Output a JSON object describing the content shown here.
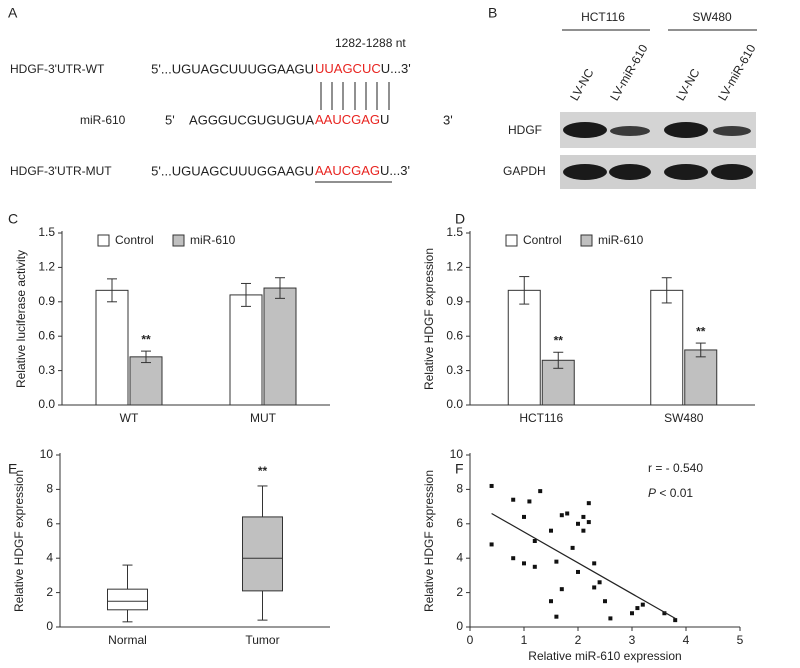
{
  "panel_a": {
    "label": "A",
    "position": "1282-1288 nt",
    "wt": {
      "name": "HDGF-3'UTR-WT",
      "prefix": "5'...UGUAGCUUUGGAAGU",
      "site": "UUAGCUC",
      "suffix": "U...3'"
    },
    "mir": {
      "name": "miR-610",
      "five": "5'",
      "prefix": "AGGGUCGUGUGUA",
      "site": "AAUCGAG",
      "suffix": "U",
      "three": "3'"
    },
    "mut": {
      "name": "HDGF-3'UTR-MUT",
      "prefix": "5'...UGUAGCUUUGGAAGU",
      "site": "AAUCGAG",
      "suffix": "U...3'"
    }
  },
  "panel_b": {
    "label": "B",
    "groups": [
      "HCT116",
      "SW480"
    ],
    "lanes": [
      "LV-NC",
      "LV-miR-610",
      "LV-NC",
      "LV-miR-610"
    ],
    "proteins": [
      "HDGF",
      "GAPDH"
    ]
  },
  "chart_data": [
    {
      "type": "bar",
      "panel": "C",
      "ylabel": "Relative luciferase activity",
      "categories": [
        "WT",
        "MUT"
      ],
      "series": [
        {
          "name": "Control",
          "color": "#ffffff",
          "values": [
            1.0,
            0.96
          ],
          "errors": [
            0.1,
            0.1
          ]
        },
        {
          "name": "miR-610",
          "color": "#c0c0c0",
          "values": [
            0.42,
            1.02
          ],
          "errors": [
            0.05,
            0.09
          ]
        }
      ],
      "annotations": [
        {
          "text": "**",
          "category": "WT",
          "series": "miR-610"
        }
      ],
      "ylim": [
        0,
        1.5
      ],
      "yticks": [
        {
          "value": 0,
          "label": "0.0"
        },
        0.3,
        0.6,
        0.9,
        1.2,
        1.5
      ]
    },
    {
      "type": "bar",
      "panel": "D",
      "ylabel": "Relative HDGF expression",
      "categories": [
        "HCT116",
        "SW480"
      ],
      "series": [
        {
          "name": "Control",
          "color": "#ffffff",
          "values": [
            1.0,
            1.0
          ],
          "errors": [
            0.12,
            0.11
          ]
        },
        {
          "name": "miR-610",
          "color": "#c0c0c0",
          "values": [
            0.39,
            0.48
          ],
          "errors": [
            0.07,
            0.06
          ]
        }
      ],
      "annotations": [
        {
          "text": "**",
          "category": "HCT116",
          "series": "miR-610"
        },
        {
          "text": "**",
          "category": "SW480",
          "series": "miR-610"
        }
      ],
      "ylim": [
        0,
        1.5
      ],
      "yticks": [
        {
          "value": 0,
          "label": "0.0"
        },
        0.3,
        0.6,
        0.9,
        1.2,
        1.5
      ]
    },
    {
      "type": "box",
      "panel": "E",
      "ylabel": "Relative HDGF expression",
      "categories": [
        "Normal",
        "Tumor"
      ],
      "colors": [
        "#ffffff",
        "#c0c0c0"
      ],
      "boxes": [
        {
          "min": 0.3,
          "q1": 1.0,
          "median": 1.5,
          "q3": 2.2,
          "max": 3.6
        },
        {
          "min": 0.4,
          "q1": 2.1,
          "median": 4.0,
          "q3": 6.4,
          "max": 8.2
        }
      ],
      "annotations": [
        {
          "text": "**",
          "category": "Tumor"
        }
      ],
      "ylim": [
        0,
        10
      ],
      "yticks": [
        0,
        2,
        4,
        6,
        8,
        10
      ]
    },
    {
      "type": "scatter",
      "panel": "F",
      "ylabel": "Relative HDGF expression",
      "xlabel": "Relative miR-610 expression",
      "color": "#111111",
      "x": [
        0.4,
        0.4,
        0.8,
        0.8,
        1.0,
        1.0,
        1.1,
        1.2,
        1.2,
        1.3,
        1.5,
        1.5,
        1.6,
        1.6,
        1.7,
        1.7,
        1.8,
        1.9,
        2.0,
        2.0,
        2.1,
        2.1,
        2.2,
        2.2,
        2.3,
        2.3,
        2.4,
        2.5,
        2.6,
        3.0,
        3.1,
        3.2,
        3.6,
        3.8
      ],
      "y": [
        8.2,
        4.8,
        7.4,
        4.0,
        6.4,
        3.7,
        7.3,
        5.0,
        3.5,
        7.9,
        1.5,
        5.6,
        0.6,
        3.8,
        6.5,
        2.2,
        6.6,
        4.6,
        6.0,
        3.2,
        6.4,
        5.6,
        7.2,
        6.1,
        2.3,
        3.7,
        2.6,
        1.5,
        0.5,
        0.8,
        1.1,
        1.3,
        0.8,
        0.4
      ],
      "fit_line": {
        "x": [
          0.4,
          3.8
        ],
        "y": [
          6.6,
          0.5
        ]
      },
      "r_text": "r = - 0.540",
      "p_symbol": "P",
      "p_text": " < 0.01",
      "xlim": [
        0,
        5
      ],
      "xticks": [
        0,
        1,
        2,
        3,
        4,
        5
      ],
      "ylim": [
        0,
        10
      ],
      "yticks": [
        0,
        2,
        4,
        6,
        8,
        10
      ]
    }
  ]
}
